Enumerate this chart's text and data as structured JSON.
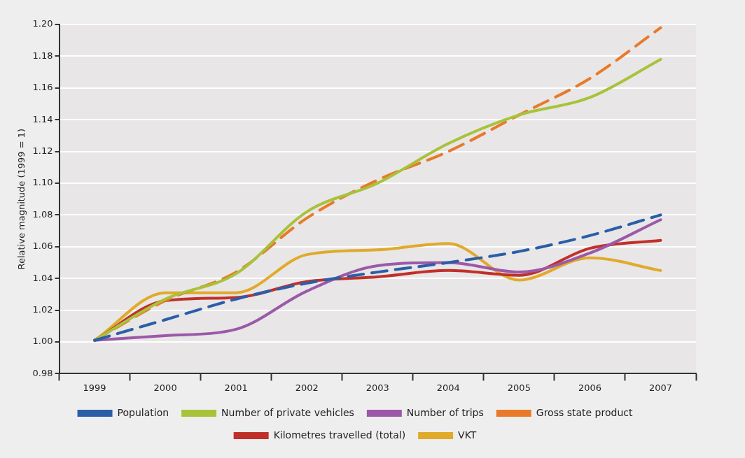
{
  "chart_data": {
    "type": "line",
    "ylabel": "Relative magnitude (1999 = 1)",
    "categories": [
      "1999",
      "2000",
      "2001",
      "2002",
      "2003",
      "2004",
      "2005",
      "2006",
      "2007"
    ],
    "ylim": [
      0.98,
      1.2
    ],
    "yticks": [
      {
        "value": 0.98,
        "label": "0.98"
      },
      {
        "value": 1,
        "label": "1.00"
      },
      {
        "value": 1.02,
        "label": "1.02"
      },
      {
        "value": 1.04,
        "label": "1.04"
      },
      {
        "value": 1.06,
        "label": "1.06"
      },
      {
        "value": 1.08,
        "label": "1.08"
      },
      {
        "value": 1.1,
        "label": "1.10"
      },
      {
        "value": 1.12,
        "label": "1.12"
      },
      {
        "value": 1.14,
        "label": "1.14"
      },
      {
        "value": 1.16,
        "label": "1.16"
      },
      {
        "value": 1.18,
        "label": "1.18"
      },
      {
        "value": 1.2,
        "label": "1.20"
      }
    ],
    "grid": "y",
    "legend": "bottom",
    "marker": "none",
    "series": [
      {
        "name": "Population",
        "color": "#2a5ea8",
        "line_style": "dashed",
        "values": [
          1.001,
          1.014,
          1.027,
          1.037,
          1.044,
          1.05,
          1.057,
          1.067,
          1.08
        ]
      },
      {
        "name": "Number of private vehicles",
        "color": "#a8c23a",
        "line_style": "solid",
        "values": [
          1.001,
          1.027,
          1.043,
          1.082,
          1.1,
          1.125,
          1.143,
          1.154,
          1.178
        ]
      },
      {
        "name": "Number of trips",
        "color": "#9b59a8",
        "line_style": "solid",
        "values": [
          1.001,
          1.004,
          1.008,
          1.032,
          1.048,
          1.05,
          1.044,
          1.056,
          1.077
        ]
      },
      {
        "name": "Gross state product",
        "color": "#e87a2a",
        "line_style": "dashed",
        "values": [
          1.001,
          1.026,
          1.044,
          1.078,
          1.102,
          1.12,
          1.143,
          1.166,
          1.198
        ]
      },
      {
        "name": "Kilometres travelled (total)",
        "color": "#c0302a",
        "line_style": "solid",
        "values": [
          1.001,
          1.026,
          1.028,
          1.038,
          1.041,
          1.045,
          1.042,
          1.059,
          1.064
        ]
      },
      {
        "name": "VKT",
        "color": "#e0aa2a",
        "line_style": "solid",
        "values": [
          1.001,
          1.031,
          1.031,
          1.055,
          1.058,
          1.062,
          1.039,
          1.053,
          1.045
        ]
      }
    ]
  }
}
